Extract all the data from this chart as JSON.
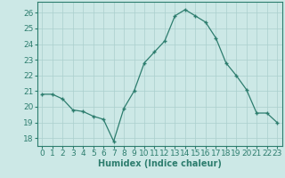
{
  "x": [
    0,
    1,
    2,
    3,
    4,
    5,
    6,
    7,
    8,
    9,
    10,
    11,
    12,
    13,
    14,
    15,
    16,
    17,
    18,
    19,
    20,
    21,
    22,
    23
  ],
  "y": [
    20.8,
    20.8,
    20.5,
    19.8,
    19.7,
    19.4,
    19.2,
    17.8,
    19.9,
    21.0,
    22.8,
    23.5,
    24.2,
    25.8,
    26.2,
    25.8,
    25.4,
    24.4,
    22.8,
    22.0,
    21.1,
    19.6,
    19.6,
    19.0
  ],
  "line_color": "#2d7d6e",
  "marker": "+",
  "marker_size": 3,
  "marker_color": "#2d7d6e",
  "bg_color": "#cce8e6",
  "grid_color": "#aacfcd",
  "xlabel": "Humidex (Indice chaleur)",
  "xlabel_fontsize": 7,
  "tick_color": "#2d7d6e",
  "xlim": [
    -0.5,
    23.5
  ],
  "ylim": [
    17.5,
    26.7
  ],
  "yticks": [
    18,
    19,
    20,
    21,
    22,
    23,
    24,
    25,
    26
  ],
  "xticks": [
    0,
    1,
    2,
    3,
    4,
    5,
    6,
    7,
    8,
    9,
    10,
    11,
    12,
    13,
    14,
    15,
    16,
    17,
    18,
    19,
    20,
    21,
    22,
    23
  ],
  "tick_fontsize": 6.5
}
